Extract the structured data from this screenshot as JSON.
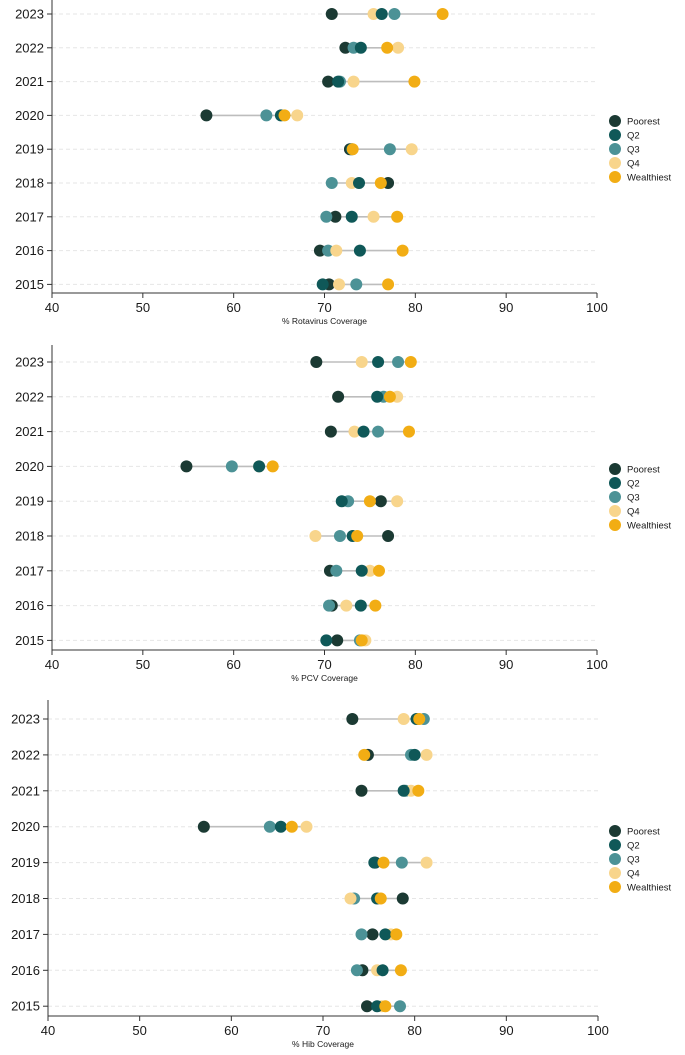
{
  "colors": {
    "Poorest": "#1b3a33",
    "Q2": "#0f5858",
    "Q3": "#4c9296",
    "Q4": "#f8d58c",
    "Wealthiest": "#f2ad14",
    "connector": "#bdbdbd",
    "grid": "#e6e6e6",
    "axis": "#333333"
  },
  "chart_data": [
    {
      "type": "dot",
      "title": "",
      "xlabel": "% Rotavirus Coverage",
      "ylabel": "",
      "xlim": [
        40,
        100
      ],
      "xticks": [
        40,
        50,
        60,
        70,
        80,
        90,
        100
      ],
      "categories": [
        "2023",
        "2022",
        "2021",
        "2020",
        "2019",
        "2018",
        "2017",
        "2016",
        "2015"
      ],
      "legend": [
        "Poorest",
        "Q2",
        "Q3",
        "Q4",
        "Wealthiest"
      ],
      "series": [
        {
          "name": "Poorest",
          "values": [
            70.8,
            72.3,
            70.4,
            57.0,
            72.8,
            77.0,
            71.2,
            69.5,
            70.5
          ]
        },
        {
          "name": "Q2",
          "values": [
            76.3,
            74.0,
            71.5,
            65.2,
            73.0,
            73.8,
            73.0,
            73.9,
            69.8
          ]
        },
        {
          "name": "Q3",
          "values": [
            77.7,
            73.2,
            71.7,
            63.6,
            77.2,
            70.8,
            70.2,
            70.4,
            73.5
          ]
        },
        {
          "name": "Q4",
          "values": [
            75.4,
            78.1,
            73.2,
            67.0,
            79.6,
            73.0,
            75.4,
            71.3,
            71.6
          ]
        },
        {
          "name": "Wealthiest",
          "values": [
            83.0,
            76.9,
            79.9,
            65.6,
            73.1,
            76.2,
            78.0,
            78.6,
            77.0
          ]
        }
      ]
    },
    {
      "type": "dot",
      "title": "",
      "xlabel": "% PCV Coverage",
      "ylabel": "",
      "xlim": [
        40,
        100
      ],
      "xticks": [
        40,
        50,
        60,
        70,
        80,
        90,
        100
      ],
      "categories": [
        "2023",
        "2022",
        "2021",
        "2020",
        "2019",
        "2018",
        "2017",
        "2016",
        "2015"
      ],
      "legend": [
        "Poorest",
        "Q2",
        "Q3",
        "Q4",
        "Wealthiest"
      ],
      "series": [
        {
          "name": "Poorest",
          "values": [
            69.1,
            71.5,
            70.7,
            54.8,
            76.2,
            77.0,
            70.6,
            70.8,
            71.4
          ]
        },
        {
          "name": "Q2",
          "values": [
            75.9,
            75.8,
            74.3,
            62.8,
            71.9,
            73.1,
            74.1,
            74.0,
            70.2
          ]
        },
        {
          "name": "Q3",
          "values": [
            78.1,
            76.5,
            75.9,
            59.8,
            72.6,
            71.7,
            71.3,
            70.5,
            73.9
          ]
        },
        {
          "name": "Q4",
          "values": [
            74.1,
            78.0,
            73.3,
            62.8,
            78.0,
            69.0,
            75.0,
            72.4,
            74.5
          ]
        },
        {
          "name": "Wealthiest",
          "values": [
            79.5,
            77.2,
            79.3,
            64.3,
            75.0,
            73.6,
            76.0,
            75.6,
            74.1
          ]
        }
      ]
    },
    {
      "type": "dot",
      "title": "",
      "xlabel": "% Hib Coverage",
      "ylabel": "",
      "xlim": [
        40,
        100
      ],
      "xticks": [
        40,
        50,
        60,
        70,
        80,
        90,
        100
      ],
      "categories": [
        "2023",
        "2022",
        "2021",
        "2020",
        "2019",
        "2018",
        "2017",
        "2016",
        "2015"
      ],
      "legend": [
        "Poorest",
        "Q2",
        "Q3",
        "Q4",
        "Wealthiest"
      ],
      "series": [
        {
          "name": "Poorest",
          "values": [
            73.2,
            74.9,
            74.2,
            57.0,
            75.7,
            78.7,
            75.4,
            74.3,
            74.8
          ]
        },
        {
          "name": "Q2",
          "values": [
            80.2,
            80.0,
            78.8,
            65.4,
            75.6,
            75.9,
            76.8,
            76.5,
            75.9
          ]
        },
        {
          "name": "Q3",
          "values": [
            81.0,
            79.6,
            79.0,
            64.2,
            78.6,
            73.4,
            74.2,
            73.7,
            78.4
          ]
        },
        {
          "name": "Q4",
          "values": [
            78.8,
            81.3,
            79.6,
            68.2,
            81.3,
            73.0,
            77.4,
            75.9,
            76.4
          ]
        },
        {
          "name": "Wealthiest",
          "values": [
            80.5,
            74.5,
            80.4,
            66.6,
            76.6,
            76.3,
            78.0,
            78.5,
            76.8
          ]
        }
      ]
    }
  ]
}
